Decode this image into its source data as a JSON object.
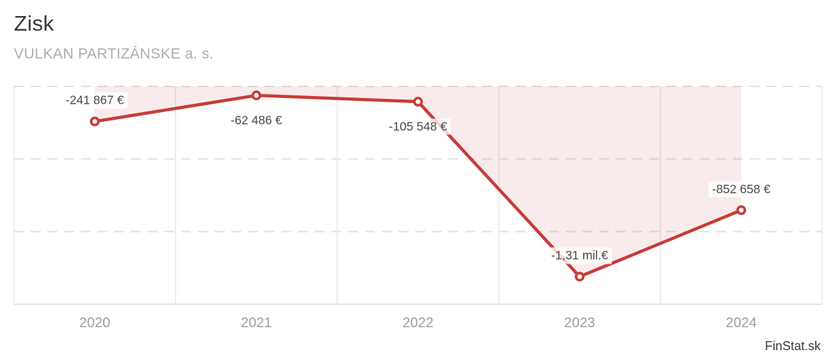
{
  "header": {
    "title": "Zisk",
    "subtitle": "VULKAN PARTIZÁNSKE a. s."
  },
  "watermark": "FinStat.sk",
  "colors": {
    "line": "#c73b38",
    "marker_fill": "#ffffff",
    "area_fill": "rgba(199,62,58,0.10)",
    "grid_dashed": "#e0e0e0",
    "grid_solid": "#e7e7e7",
    "axis_bottom": "#dcdcdc",
    "label_text": "#4a4a4a",
    "axis_label_text": "#9e9e9e"
  },
  "chart_data": {
    "type": "line",
    "title": "Zisk",
    "subtitle": "VULKAN PARTIZÁNSKE a. s.",
    "categories": [
      "2020",
      "2021",
      "2022",
      "2023",
      "2024"
    ],
    "series": [
      {
        "name": "Zisk",
        "values": [
          -241867,
          -62486,
          -105548,
          -1310000,
          -852658
        ]
      }
    ],
    "point_labels": [
      "-241 867 €",
      "-62 486 €",
      "-105 548 €",
      "-1,31 mil.€",
      "-852 658 €"
    ],
    "label_placement": [
      "above",
      "below",
      "below",
      "above",
      "above"
    ],
    "xlabel": "",
    "ylabel": "",
    "ylim": [
      -1500000,
      0
    ],
    "y_gridlines_dashed": [
      0,
      -500000,
      -1000000
    ],
    "grid": {
      "horizontal": "dashed",
      "vertical": "solid"
    },
    "legend": "none",
    "area_fill_to_zero": true
  }
}
